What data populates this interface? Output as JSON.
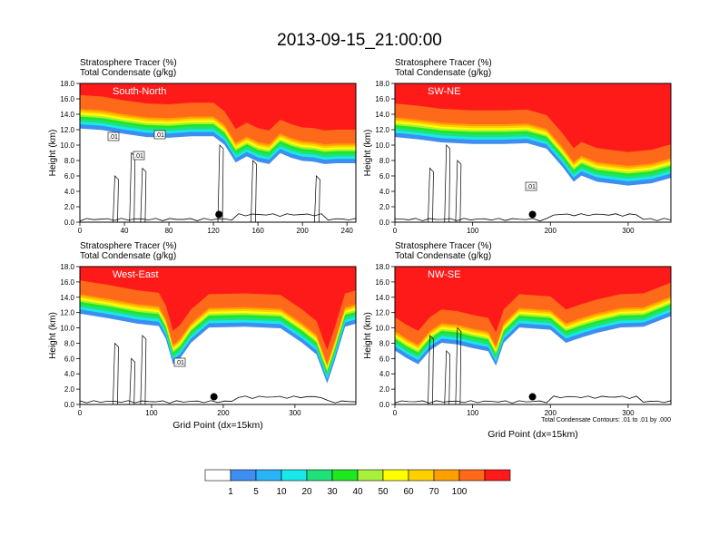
{
  "title": "2013-09-15_21:00:00",
  "colors": {
    "scale": [
      "#ffffff",
      "#3d8ef0",
      "#2ab4f8",
      "#18e8e8",
      "#20e07a",
      "#1ee81e",
      "#a8f03c",
      "#ffff00",
      "#ffd000",
      "#ffa000",
      "#ff6a1a",
      "#ff1a1a"
    ]
  },
  "colorbar": {
    "labels": [
      "1",
      "5",
      "10",
      "20",
      "30",
      "40",
      "50",
      "60",
      "70",
      "100"
    ]
  },
  "chart_data": [
    {
      "type": "heatmap",
      "panel_label": "South-North",
      "header_line1": "Stratosphere Tracer   (%)",
      "header_line2": "Total Condensate   (g/kg)",
      "ylabel": "Height (km)",
      "xlabel": "",
      "xlim": [
        0,
        248
      ],
      "ylim": [
        0,
        18
      ],
      "xticks": [
        "0",
        "40",
        "80",
        "120",
        "160",
        "200",
        "240"
      ],
      "yticks": [
        "0.0",
        "2.0",
        "4.0",
        "6.0",
        "8.0",
        "10.0",
        "12.0",
        "14.0",
        "16.0",
        "18.0"
      ],
      "contour_labels": [
        ".01",
        ".01",
        ".01"
      ],
      "marker_x": 125,
      "top_profile": [
        [
          0,
          15.6
        ],
        [
          20,
          15.4
        ],
        [
          40,
          14.9
        ],
        [
          60,
          14.5
        ],
        [
          80,
          14.4
        ],
        [
          100,
          14.6
        ],
        [
          120,
          14.6
        ],
        [
          130,
          13.5
        ],
        [
          140,
          11.2
        ],
        [
          150,
          12.0
        ],
        [
          160,
          11.3
        ],
        [
          170,
          11.0
        ],
        [
          180,
          12.4
        ],
        [
          190,
          11.8
        ],
        [
          200,
          11.4
        ],
        [
          210,
          11.3
        ],
        [
          220,
          11.0
        ],
        [
          230,
          11.1
        ],
        [
          248,
          11.1
        ]
      ]
    },
    {
      "type": "heatmap",
      "panel_label": "SW-NE",
      "header_line1": "Stratosphere Tracer   (%)",
      "header_line2": "Total Condensate   (g/kg)",
      "ylabel": "Height (km)",
      "xlabel": "",
      "xlim": [
        0,
        355
      ],
      "ylim": [
        0,
        18
      ],
      "xticks": [
        "0",
        "100",
        "200",
        "300"
      ],
      "yticks": [
        "0.0",
        "2.0",
        "4.0",
        "6.0",
        "8.0",
        "10.0",
        "12.0",
        "14.0",
        "16.0",
        "18.0"
      ],
      "contour_labels": [
        ".01"
      ],
      "marker_x": 177,
      "top_profile": [
        [
          0,
          14.5
        ],
        [
          30,
          14.2
        ],
        [
          60,
          13.8
        ],
        [
          100,
          13.6
        ],
        [
          140,
          13.6
        ],
        [
          170,
          13.7
        ],
        [
          195,
          13.0
        ],
        [
          215,
          10.7
        ],
        [
          230,
          8.7
        ],
        [
          240,
          9.5
        ],
        [
          260,
          8.7
        ],
        [
          300,
          8.2
        ],
        [
          330,
          8.5
        ],
        [
          355,
          9.2
        ]
      ]
    },
    {
      "type": "heatmap",
      "panel_label": "West-East",
      "header_line1": "Stratosphere Tracer   (%)",
      "header_line2": "Total Condensate   (g/kg)",
      "ylabel": "Height (km)",
      "xlabel": "Grid Point (dx=15km)",
      "xlim": [
        0,
        385
      ],
      "ylim": [
        0,
        18
      ],
      "xticks": [
        "0",
        "100",
        "200",
        "300"
      ],
      "yticks": [
        "0.0",
        "2.0",
        "4.0",
        "6.0",
        "8.0",
        "10.0",
        "12.0",
        "14.0",
        "16.0",
        "18.0"
      ],
      "contour_labels": [
        ".01"
      ],
      "marker_x": 187,
      "top_profile": [
        [
          0,
          15.3
        ],
        [
          40,
          14.7
        ],
        [
          80,
          14.0
        ],
        [
          110,
          13.7
        ],
        [
          120,
          12.0
        ],
        [
          130,
          8.7
        ],
        [
          140,
          9.5
        ],
        [
          155,
          11.5
        ],
        [
          180,
          13.5
        ],
        [
          230,
          13.6
        ],
        [
          280,
          13.4
        ],
        [
          310,
          11.5
        ],
        [
          330,
          10.0
        ],
        [
          345,
          6.2
        ],
        [
          355,
          9.0
        ],
        [
          370,
          13.6
        ],
        [
          385,
          14.0
        ]
      ]
    },
    {
      "type": "heatmap",
      "panel_label": "NW-SE",
      "header_line1": "Stratosphere Tracer   (%)",
      "header_line2": "Total Condensate   (g/kg)",
      "ylabel": "Height (km)",
      "xlabel": "Grid Point (dx=15km)",
      "xlim": [
        0,
        355
      ],
      "ylim": [
        0,
        18
      ],
      "xticks": [
        "0",
        "100",
        "200",
        "300"
      ],
      "yticks": [
        "0.0",
        "2.0",
        "4.0",
        "6.0",
        "8.0",
        "10.0",
        "12.0",
        "14.0",
        "16.0",
        "18.0"
      ],
      "contour_labels": [],
      "marker_x": 177,
      "note": "Total Condensate Contours: .01 to .01 by .000",
      "top_profile": [
        [
          0,
          10.5
        ],
        [
          15,
          9.5
        ],
        [
          30,
          8.7
        ],
        [
          45,
          10.5
        ],
        [
          60,
          11.5
        ],
        [
          80,
          11.3
        ],
        [
          100,
          10.8
        ],
        [
          120,
          10.4
        ],
        [
          130,
          8.5
        ],
        [
          140,
          11.5
        ],
        [
          160,
          13.5
        ],
        [
          200,
          13.2
        ],
        [
          220,
          11.5
        ],
        [
          240,
          12.2
        ],
        [
          260,
          12.8
        ],
        [
          290,
          13.5
        ],
        [
          320,
          13.6
        ],
        [
          355,
          15.0
        ]
      ]
    }
  ]
}
